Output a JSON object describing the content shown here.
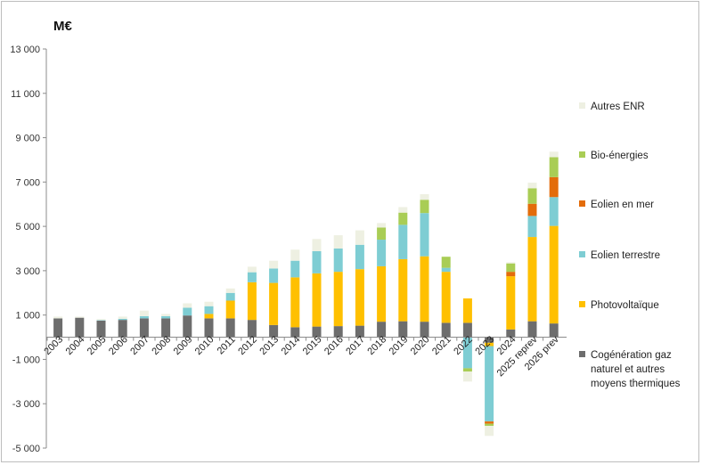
{
  "chart_data": {
    "type": "bar",
    "stacked": true,
    "unit_label": "M€",
    "title": "",
    "xlabel": "",
    "ylabel": "",
    "ylim": [
      -5000,
      13000
    ],
    "yticks": [
      13000,
      11000,
      9000,
      7000,
      5000,
      3000,
      1000,
      -1000,
      -3000,
      -5000
    ],
    "ytick_labels": [
      "13 000",
      "11 000",
      "9 000",
      "7 000",
      "5 000",
      "3 000",
      "1 000",
      "-1 000",
      "-3 000",
      "-5 000"
    ],
    "grid": false,
    "legend_position": "right",
    "categories": [
      "2003",
      "2004",
      "2005",
      "2006",
      "2007",
      "2008",
      "2009",
      "2010",
      "2011",
      "2012",
      "2013",
      "2014",
      "2015",
      "2016",
      "2017",
      "2018",
      "2019",
      "2020",
      "2021",
      "2022",
      "2023",
      "2024",
      "2025 reprev",
      "2026 prev"
    ],
    "series": [
      {
        "name": "Cogénération gaz naturel et autres moyens thermiques",
        "color": "#6d6d6d",
        "values": [
          850,
          880,
          750,
          780,
          850,
          850,
          980,
          850,
          850,
          780,
          550,
          450,
          480,
          500,
          520,
          700,
          720,
          700,
          650,
          650,
          -250,
          350,
          720,
          620
        ]
      },
      {
        "name": "Photovoltaïque",
        "color": "#ffc000",
        "values": [
          0,
          0,
          0,
          0,
          0,
          0,
          0,
          200,
          800,
          1700,
          1900,
          2250,
          2400,
          2450,
          2550,
          2500,
          2800,
          2950,
          2300,
          1100,
          -150,
          2400,
          3800,
          4400
        ]
      },
      {
        "name": "Eolien terrestre",
        "color": "#7ecdd3",
        "values": [
          0,
          0,
          20,
          50,
          100,
          100,
          350,
          350,
          350,
          450,
          650,
          750,
          1000,
          1050,
          1100,
          1200,
          1550,
          1950,
          180,
          -1400,
          -3400,
          0,
          950,
          1300
        ]
      },
      {
        "name": "Eolien en mer",
        "color": "#e36c0a",
        "values": [
          0,
          0,
          0,
          0,
          0,
          0,
          0,
          0,
          0,
          0,
          0,
          0,
          0,
          0,
          0,
          0,
          0,
          0,
          0,
          0,
          -100,
          200,
          550,
          900
        ]
      },
      {
        "name": "Bio-énergies",
        "color": "#a9cd55",
        "values": [
          0,
          0,
          0,
          0,
          0,
          0,
          0,
          0,
          0,
          0,
          0,
          0,
          0,
          0,
          0,
          550,
          550,
          600,
          500,
          -150,
          -100,
          380,
          700,
          900
        ]
      },
      {
        "name": "Autres ENR",
        "color": "#eef0e2",
        "values": [
          80,
          50,
          50,
          100,
          250,
          100,
          200,
          200,
          200,
          250,
          350,
          500,
          550,
          600,
          650,
          200,
          250,
          250,
          0,
          -450,
          -450,
          50,
          250,
          250
        ]
      }
    ],
    "legend": [
      {
        "name": "Autres ENR",
        "color": "#eef0e2"
      },
      {
        "name": "Bio-énergies",
        "color": "#a9cd55"
      },
      {
        "name": "Eolien en mer",
        "color": "#e36c0a"
      },
      {
        "name": "Eolien terrestre",
        "color": "#7ecdd3"
      },
      {
        "name": "Photovoltaïque",
        "color": "#ffc000"
      },
      {
        "name": "Cogénération gaz",
        "name_lines": [
          "Cogénération gaz",
          "naturel et autres",
          "moyens thermiques"
        ],
        "color": "#6d6d6d"
      }
    ]
  }
}
